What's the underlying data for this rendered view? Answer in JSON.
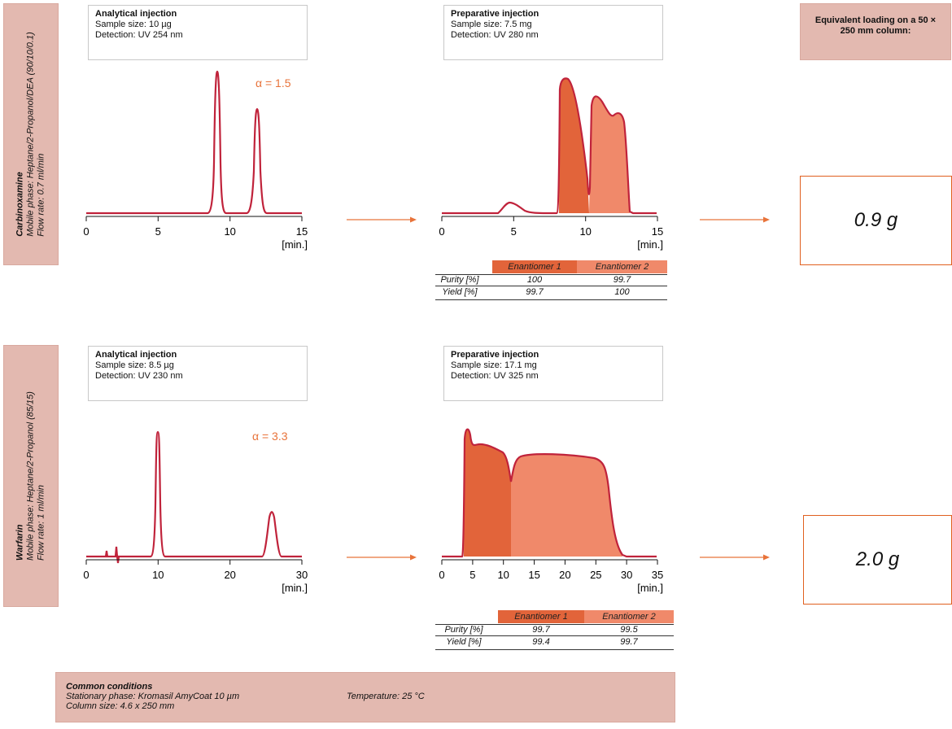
{
  "experiments": [
    {
      "compound": "Carbinoxamine",
      "mobile_phase": "Mobile phase: Heptane/2-Propanol/DEA (90/10/0.1)",
      "flow_rate": "Flow rate: 0.7 ml/min",
      "analytical": {
        "title": "Analytical injection",
        "sample": "Sample size: 10 µg",
        "detection": "Detection: UV 254 nm",
        "alpha": "α = 1.5"
      },
      "preparative": {
        "title": "Preparative injection",
        "sample": "Sample size: 7.5 mg",
        "detection": "Detection: UV 280 nm"
      },
      "table": {
        "headers": [
          "Enantiomer 1",
          "Enantiomer 2"
        ],
        "rows": [
          {
            "label": "Purity [%]",
            "values": [
              "100",
              "99.7"
            ]
          },
          {
            "label": "Yield [%]",
            "values": [
              "99.7",
              "100"
            ]
          }
        ]
      },
      "loading": "0.9 g"
    },
    {
      "compound": "Warfarin",
      "mobile_phase": "Mobile phase: Heptane/2-Propanol (85/15)",
      "flow_rate": "Flow rate: 1 ml/min",
      "analytical": {
        "title": "Analytical injection",
        "sample": "Sample size: 8.5 µg",
        "detection": "Detection: UV 230 nm",
        "alpha": "α = 3.3"
      },
      "preparative": {
        "title": "Preparative injection",
        "sample": "Sample size: 17.1 mg",
        "detection": "Detection: UV 325 nm"
      },
      "table": {
        "headers": [
          "Enantiomer 1",
          "Enantiomer 2"
        ],
        "rows": [
          {
            "label": "Purity [%]",
            "values": [
              "99.7",
              "99.5"
            ]
          },
          {
            "label": "Yield [%]",
            "values": [
              "99.4",
              "99.7"
            ]
          }
        ]
      },
      "loading": "2.0 g"
    }
  ],
  "equivalent_heading": "Equivalent loading on a 50 × 250 mm column:",
  "common": {
    "title": "Common conditions",
    "stationary": "Stationary phase: Kromasil AmyCoat 10 µm",
    "column": "Column size: 4.6 x 250 mm",
    "temperature": "Temperature: 25 °C"
  },
  "colors": {
    "trace": "#c0233b",
    "enantiomer1": "#e2643a",
    "enantiomer2": "#f0896a",
    "arrow": "#e8733a",
    "panel": "#e3b9b0"
  },
  "chart_data": [
    {
      "type": "line",
      "name": "carbinoxamine-analytical",
      "xlabel": "[min.]",
      "xlim": [
        0,
        15
      ],
      "xticks": [
        0,
        5,
        10,
        15
      ],
      "peaks": [
        {
          "x": 9.2,
          "height": 1.0
        },
        {
          "x": 11.9,
          "height": 0.72
        }
      ]
    },
    {
      "type": "area",
      "name": "carbinoxamine-preparative",
      "xlabel": "[min.]",
      "xlim": [
        0,
        15
      ],
      "xticks": [
        0,
        5,
        10,
        15
      ],
      "fractions": [
        {
          "name": "Enantiomer 1",
          "x": [
            8.4,
            10.5
          ]
        },
        {
          "name": "Enantiomer 2",
          "x": [
            10.5,
            13.5
          ]
        }
      ]
    },
    {
      "type": "line",
      "name": "warfarin-analytical",
      "xlabel": "[min.]",
      "xlim": [
        0,
        30
      ],
      "xticks": [
        0,
        10,
        20,
        30
      ],
      "peaks": [
        {
          "x": 9.8,
          "height": 1.0
        },
        {
          "x": 25.8,
          "height": 0.3
        }
      ]
    },
    {
      "type": "area",
      "name": "warfarin-preparative",
      "xlabel": "[min.]",
      "xlim": [
        0,
        35
      ],
      "xticks": [
        0,
        5,
        10,
        15,
        20,
        25,
        30,
        35
      ],
      "fractions": [
        {
          "name": "Enantiomer 1",
          "x": [
            3.5,
            11
          ]
        },
        {
          "name": "Enantiomer 2",
          "x": [
            11,
            29
          ]
        }
      ]
    }
  ]
}
